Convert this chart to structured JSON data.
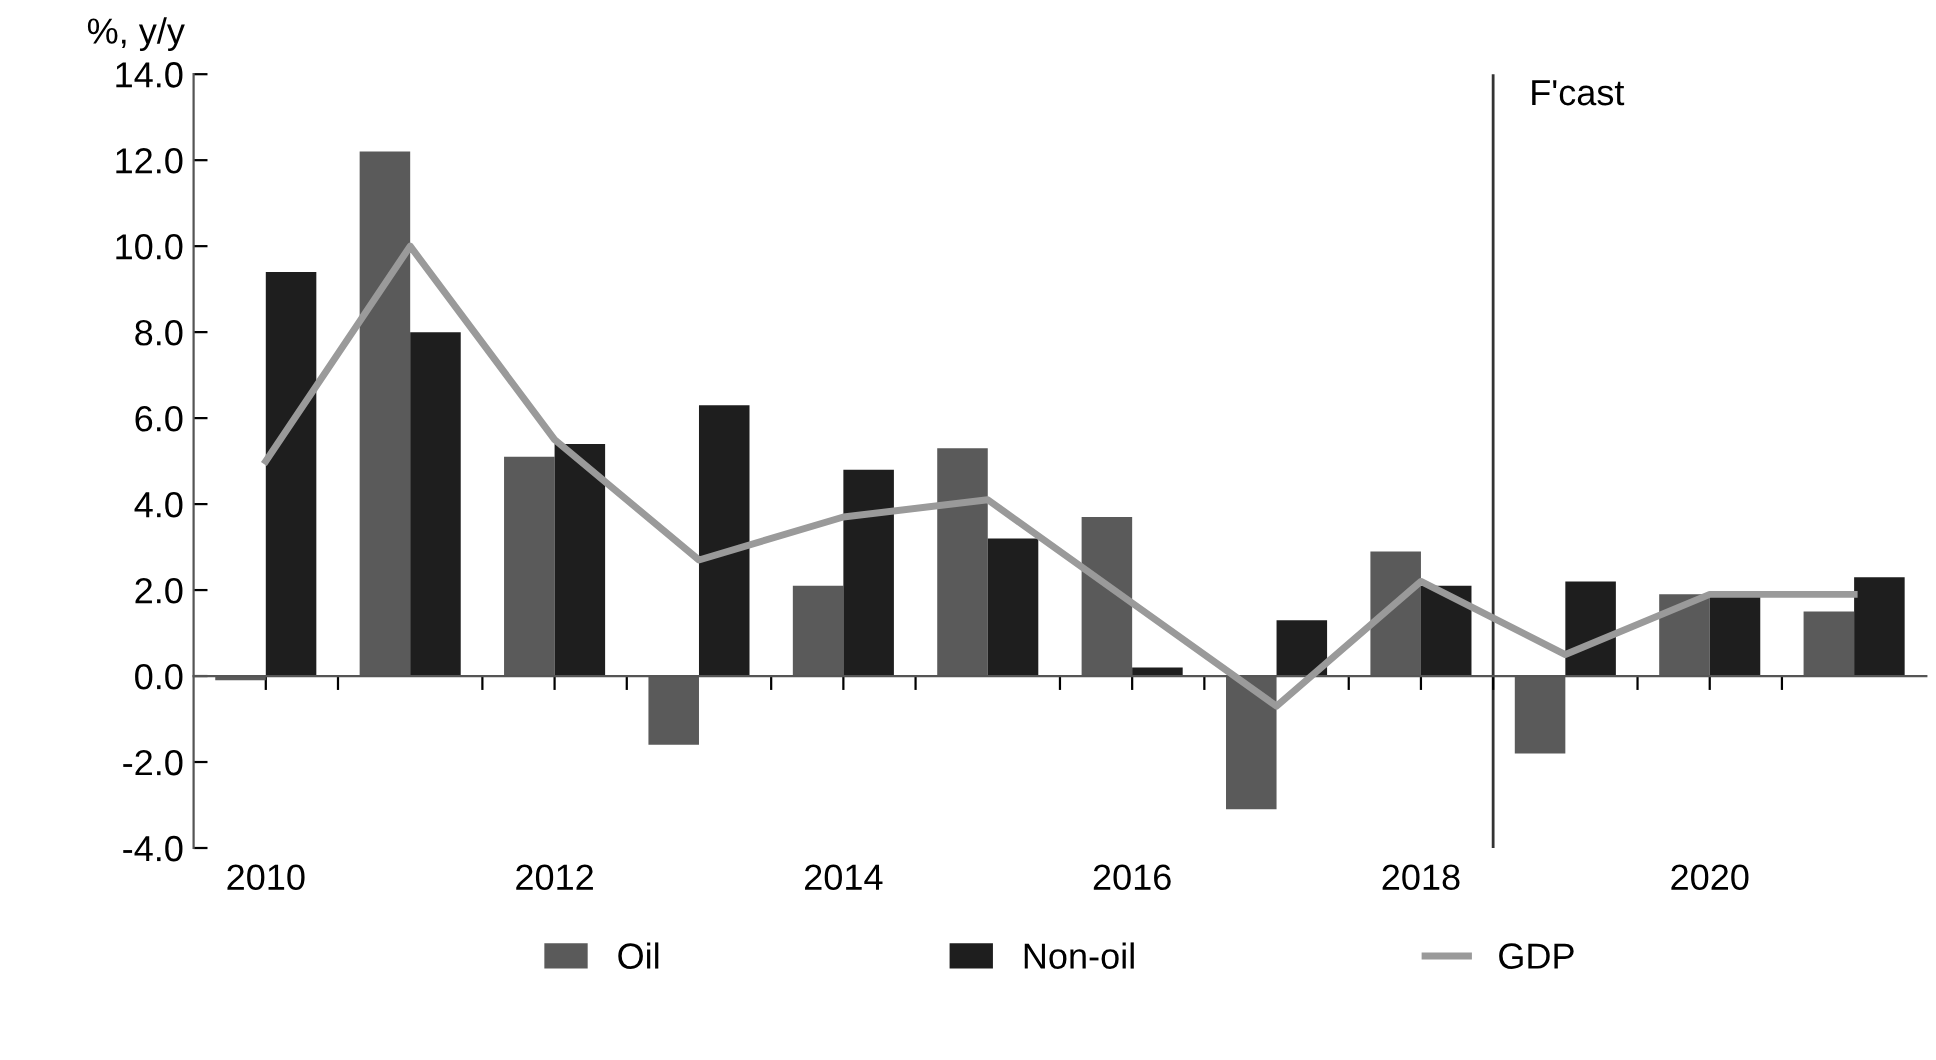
{
  "chart_data": {
    "type": "bar",
    "ylabel": "%, y/y",
    "x": [
      2010,
      2011,
      2012,
      2013,
      2014,
      2015,
      2016,
      2017,
      2018,
      2019,
      2020,
      2021
    ],
    "xlim": [
      2009.5,
      2021.5
    ],
    "xticks": [
      2010,
      2012,
      2014,
      2016,
      2018,
      2020,
      {
        "value": 2010.5,
        "label": null
      },
      {
        "value": 2011.5,
        "label": null
      },
      {
        "value": 2012.5,
        "label": null
      },
      {
        "value": 2013.5,
        "label": null
      },
      {
        "value": 2014.5,
        "label": null
      },
      {
        "value": 2015.5,
        "label": null
      },
      {
        "value": 2016.5,
        "label": null
      },
      {
        "value": 2017.5,
        "label": null
      },
      {
        "value": 2018.5,
        "label": null
      },
      {
        "value": 2019.5,
        "label": null
      },
      {
        "value": 2020.5,
        "label": null
      }
    ],
    "ylim": [
      -4,
      14
    ],
    "yticks": [
      {
        "value": -4,
        "label": "-4.0"
      },
      {
        "value": -2,
        "label": "-2.0"
      },
      {
        "value": 0,
        "label": "0.0"
      },
      {
        "value": 2,
        "label": "2.0"
      },
      {
        "value": 4,
        "label": "4.0"
      },
      {
        "value": 6,
        "label": "6.0"
      },
      {
        "value": 8,
        "label": "8.0"
      },
      {
        "value": 10,
        "label": "10.0"
      },
      {
        "value": 12,
        "label": "12.0"
      },
      {
        "value": 14,
        "label": "14.0"
      }
    ],
    "series": [
      {
        "name": "Oil",
        "color": "#5a5a5a",
        "values": [
          -0.1,
          12.2,
          5.1,
          -1.6,
          2.1,
          5.3,
          3.7,
          -3.1,
          2.9,
          -1.8,
          1.9,
          1.5
        ]
      },
      {
        "name": "Non-oil",
        "color": "#1e1e1e",
        "values": [
          9.4,
          8.0,
          5.4,
          6.3,
          4.8,
          3.2,
          0.2,
          1.3,
          2.1,
          2.2,
          1.9,
          2.3
        ]
      },
      {
        "name": "GDP",
        "type": "line",
        "color": "#9a9a9a",
        "values": [
          5.0,
          10.0,
          5.5,
          2.7,
          3.7,
          4.1,
          1.7,
          -0.7,
          2.2,
          0.5,
          1.9,
          1.9
        ]
      }
    ],
    "ref_lines": [
      {
        "axis": "x",
        "value": 2018.5,
        "label": "F'cast",
        "color": "#333333"
      }
    ],
    "grid": false,
    "legend": "bottom"
  }
}
